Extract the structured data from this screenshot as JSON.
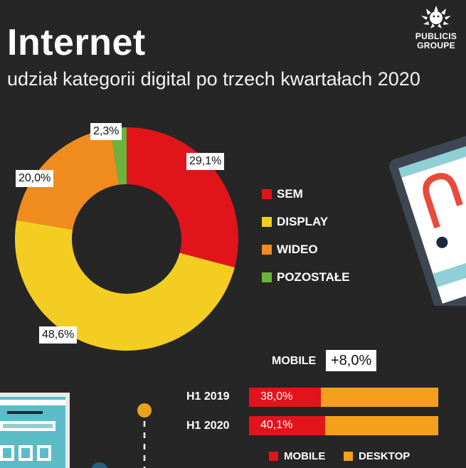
{
  "header": {
    "title": "Internet",
    "subtitle": "udział kategorii digital po trzech kwartałach 2020"
  },
  "logo": {
    "line1": "PUBLICIS",
    "line2": "GROUPE"
  },
  "chart_data": [
    {
      "type": "pie",
      "donut": true,
      "categories": [
        "SEM",
        "DISPLAY",
        "WIDEO",
        "POZOSTAŁE"
      ],
      "values": [
        29.1,
        48.6,
        20.0,
        2.3
      ],
      "value_labels": [
        "29,1%",
        "48,6%",
        "20,0%",
        "2,3%"
      ],
      "colors": [
        "#e1141b",
        "#f4cd22",
        "#f08c1e",
        "#6bb33e"
      ],
      "legend_position": "right"
    },
    {
      "type": "bar",
      "orientation": "horizontal",
      "stacked": true,
      "categories": [
        "H1 2019",
        "H1 2020"
      ],
      "series": [
        {
          "name": "MOBILE",
          "values": [
            38.0,
            40.1
          ],
          "labels": [
            "38,0%",
            "40,1%"
          ],
          "color": "#e1141b"
        },
        {
          "name": "DESKTOP",
          "values": [
            62.0,
            59.9
          ],
          "color": "#f5a01c"
        }
      ],
      "xlim": [
        0,
        100
      ],
      "annotation": {
        "label": "MOBILE",
        "value": "+8,0%"
      }
    }
  ]
}
